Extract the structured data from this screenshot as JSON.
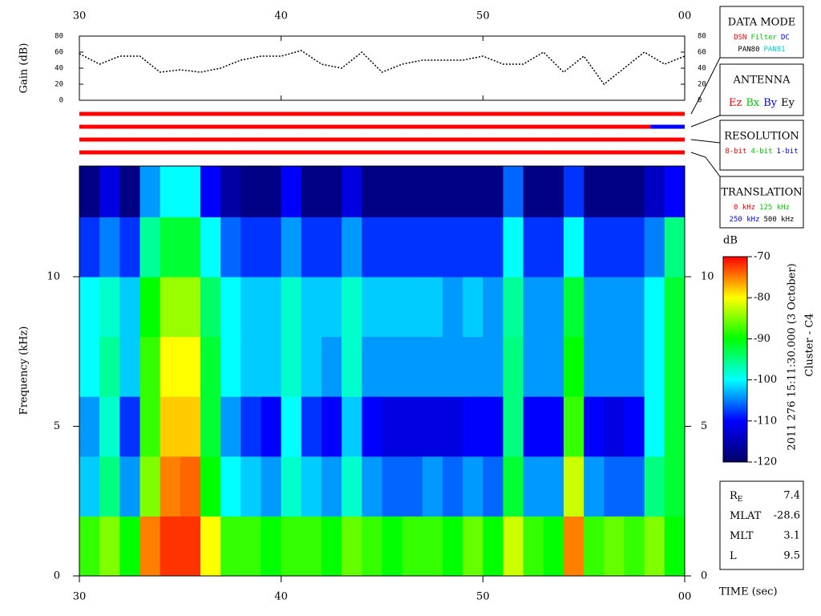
{
  "chart_data": [
    {
      "type": "line",
      "ylabel": "Gain (dB)",
      "x": [
        30,
        31,
        32,
        33,
        34,
        35,
        36,
        37,
        38,
        39,
        40,
        41,
        42,
        43,
        44,
        45,
        46,
        47,
        48,
        49,
        50,
        51,
        52,
        53,
        54,
        55,
        56,
        57,
        58,
        59,
        60
      ],
      "values": [
        58,
        45,
        55,
        55,
        35,
        38,
        35,
        40,
        50,
        55,
        55,
        62,
        45,
        40,
        60,
        35,
        45,
        50,
        50,
        50,
        55,
        45,
        45,
        60,
        35,
        55,
        20,
        40,
        60,
        45,
        55
      ],
      "color": "#000000",
      "xlim": [
        30,
        60
      ],
      "xticks": [
        30,
        40,
        50,
        {
          "value": 60,
          "label": "00"
        }
      ],
      "ylim": [
        0,
        80
      ],
      "yticks": [
        0,
        20,
        40,
        60,
        80
      ]
    },
    {
      "type": "status",
      "xlim": [
        30,
        60
      ],
      "rows": [
        {
          "segments": [
            {
              "start": 30,
              "end": 60,
              "color": "#ff0000"
            }
          ]
        },
        {
          "segments": [
            {
              "start": 30,
              "end": 58.3,
              "color": "#ff0000"
            },
            {
              "start": 58.3,
              "end": 60,
              "color": "#0000ff"
            }
          ]
        },
        {
          "segments": [
            {
              "start": 30,
              "end": 60,
              "color": "#ff0000"
            }
          ]
        },
        {
          "segments": [
            {
              "start": 30,
              "end": 60,
              "color": "#ff0000"
            }
          ]
        }
      ]
    },
    {
      "type": "heatmap",
      "ylabel": "Frequency (kHz)",
      "xlabel": "TIME (sec)",
      "x_bins": [
        30,
        31,
        32,
        33,
        34,
        35,
        36,
        37,
        38,
        39,
        40,
        41,
        42,
        43,
        44,
        45,
        46,
        47,
        48,
        49,
        50,
        51,
        52,
        53,
        54,
        55,
        56,
        57,
        58,
        59,
        60
      ],
      "y_bins": [
        0,
        2,
        4,
        6,
        8,
        10,
        12,
        13.7
      ],
      "z": [
        [
          -88,
          -85,
          -90,
          -75,
          -72,
          -72,
          -80,
          -88,
          -88,
          -90,
          -88,
          -88,
          -90,
          -86,
          -88,
          -90,
          -88,
          -88,
          -90,
          -86,
          -90,
          -82,
          -88,
          -90,
          -75,
          -88,
          -86,
          -88,
          -85,
          -90
        ],
        [
          -102,
          -95,
          -104,
          -85,
          -75,
          -74,
          -90,
          -100,
          -102,
          -104,
          -98,
          -102,
          -104,
          -98,
          -104,
          -106,
          -106,
          -104,
          -106,
          -104,
          -106,
          -92,
          -104,
          -104,
          -82,
          -104,
          -106,
          -106,
          -95,
          -92
        ],
        [
          -104,
          -98,
          -108,
          -88,
          -78,
          -78,
          -92,
          -104,
          -108,
          -110,
          -100,
          -108,
          -110,
          -102,
          -110,
          -112,
          -112,
          -112,
          -112,
          -110,
          -110,
          -95,
          -110,
          -110,
          -88,
          -110,
          -112,
          -110,
          -100,
          -92
        ],
        [
          -100,
          -96,
          -102,
          -88,
          -80,
          -80,
          -92,
          -100,
          -102,
          -102,
          -98,
          -102,
          -104,
          -98,
          -104,
          -104,
          -104,
          -104,
          -104,
          -104,
          -104,
          -95,
          -104,
          -104,
          -90,
          -104,
          -104,
          -104,
          -100,
          -92
        ],
        [
          -100,
          -98,
          -102,
          -90,
          -84,
          -84,
          -94,
          -100,
          -102,
          -102,
          -98,
          -102,
          -102,
          -98,
          -102,
          -102,
          -102,
          -102,
          -104,
          -102,
          -104,
          -96,
          -104,
          -104,
          -92,
          -104,
          -104,
          -104,
          -100,
          -92
        ],
        [
          -108,
          -105,
          -108,
          -96,
          -92,
          -92,
          -100,
          -106,
          -108,
          -108,
          -104,
          -108,
          -108,
          -104,
          -108,
          -108,
          -108,
          -108,
          -108,
          -108,
          -108,
          -100,
          -108,
          -108,
          -100,
          -108,
          -108,
          -108,
          -105,
          -95
        ],
        [
          -118,
          -112,
          -118,
          -104,
          -100,
          -100,
          -110,
          -116,
          -118,
          -118,
          -110,
          -118,
          -118,
          -112,
          -118,
          -118,
          -118,
          -118,
          -118,
          -118,
          -118,
          -106,
          -118,
          -118,
          -108,
          -118,
          -118,
          -118,
          -114,
          -110
        ]
      ],
      "xlim": [
        30,
        60
      ],
      "xticks": [
        30,
        40,
        50,
        {
          "value": 60,
          "label": "00"
        }
      ],
      "ylim": [
        0,
        13.7
      ],
      "yticks": [
        0,
        5,
        10
      ],
      "colorbar": {
        "label": "dB",
        "lim": [
          -120,
          -70
        ],
        "ticks": [
          -70,
          -80,
          -90,
          -100,
          -110,
          -120
        ],
        "colormap": [
          "#000066",
          "#0000ff",
          "#00ffff",
          "#00ff00",
          "#ffff00",
          "#ff0000"
        ]
      }
    }
  ],
  "panels": [
    {
      "title": "DATA MODE",
      "lines": [
        [
          {
            "text": "DSN",
            "color": "#ff0000"
          },
          {
            "text": "Filter",
            "color": "#00cc00"
          },
          {
            "text": "DC",
            "color": "#0000ff"
          }
        ],
        [
          {
            "text": "PAN80",
            "color": "#000000"
          },
          {
            "text": "PAN81",
            "color": "#00cccc"
          }
        ]
      ]
    },
    {
      "title": "ANTENNA",
      "lines": [
        [
          {
            "text": "Ez",
            "color": "#ff0000"
          },
          {
            "text": "Bx",
            "color": "#00cc00"
          },
          {
            "text": "By",
            "color": "#0000ff"
          },
          {
            "text": "Ey",
            "color": "#000000"
          }
        ]
      ]
    },
    {
      "title": "RESOLUTION",
      "lines": [
        [
          {
            "text": "8-bit",
            "color": "#ff0000"
          },
          {
            "text": "4-bit",
            "color": "#00cc00"
          },
          {
            "text": "1-bit",
            "color": "#0000ff"
          }
        ]
      ]
    },
    {
      "title": "TRANSLATION",
      "lines": [
        [
          {
            "text": "0 kHz",
            "color": "#ff0000"
          },
          {
            "text": "125 kHz",
            "color": "#00cc00"
          }
        ],
        [
          {
            "text": "250 kHz",
            "color": "#0000ff"
          },
          {
            "text": "500 kHz",
            "color": "#000000"
          }
        ]
      ]
    }
  ],
  "info": [
    {
      "label": "R",
      "sub": "E",
      "value": 7.4
    },
    {
      "label": "MLAT",
      "value": -28.6
    },
    {
      "label": "MLT",
      "value": 3.1
    },
    {
      "label": "L",
      "value": 9.5
    }
  ],
  "caption": [
    "2011 276 15:11:30.000 (3 October)",
    "Cluster - C4"
  ]
}
